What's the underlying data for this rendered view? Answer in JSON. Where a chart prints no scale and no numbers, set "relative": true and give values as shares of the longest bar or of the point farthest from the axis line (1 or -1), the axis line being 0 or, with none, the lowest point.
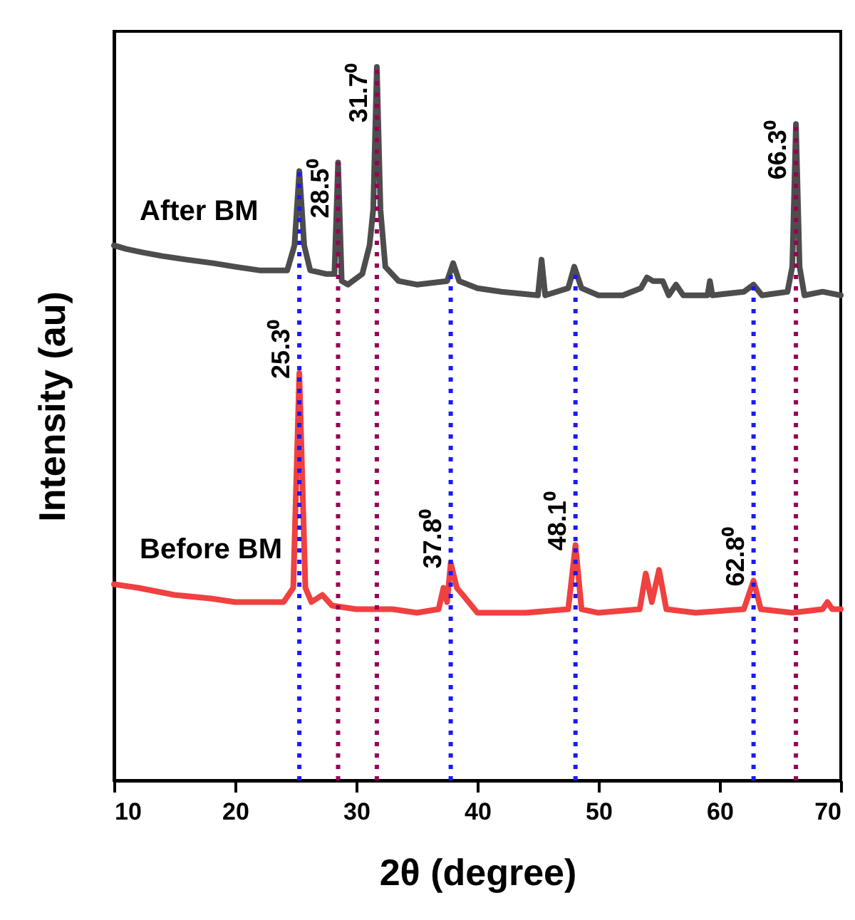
{
  "chart_data": {
    "type": "line",
    "relative": true,
    "xlabel": "2θ (degree)",
    "ylabel": "Intensity (au)",
    "xlim": [
      10,
      70
    ],
    "xticks": [
      10,
      20,
      30,
      40,
      50,
      60,
      70
    ],
    "tick_labels": "x",
    "grid": false,
    "legend": false,
    "line_style": "solid",
    "marker": "none",
    "series": [
      {
        "name": "After BM",
        "color": "#4d4d4d",
        "x": [
          10,
          11,
          12.4,
          14,
          16,
          18.2,
          20,
          22,
          24.3,
          24.9,
          25.3,
          25.7,
          26.2,
          27.5,
          28.2,
          28.5,
          28.8,
          29.3,
          30.5,
          31.1,
          31.4,
          31.7,
          32,
          32.4,
          33.5,
          35,
          37.5,
          38,
          38.5,
          40,
          42,
          45,
          45.3,
          45.6,
          47.5,
          48,
          48.6,
          50,
          52,
          53.5,
          54,
          54.5,
          55.3,
          55.8,
          56.4,
          57,
          59,
          59.2,
          59.4,
          62,
          62.8,
          63.5,
          65.6,
          66,
          66.3,
          66.6,
          67,
          68.5,
          70
        ],
        "values": [
          0.75,
          0.745,
          0.74,
          0.735,
          0.73,
          0.725,
          0.72,
          0.715,
          0.715,
          0.75,
          0.854,
          0.75,
          0.715,
          0.71,
          0.71,
          0.866,
          0.7,
          0.695,
          0.71,
          0.75,
          0.8,
          1,
          0.8,
          0.72,
          0.7,
          0.695,
          0.7,
          0.725,
          0.7,
          0.69,
          0.685,
          0.68,
          0.73,
          0.68,
          0.69,
          0.72,
          0.69,
          0.68,
          0.68,
          0.69,
          0.705,
          0.7,
          0.7,
          0.68,
          0.695,
          0.68,
          0.68,
          0.7,
          0.68,
          0.685,
          0.695,
          0.68,
          0.685,
          0.72,
          0.92,
          0.72,
          0.68,
          0.685,
          0.68
        ]
      },
      {
        "name": "Before BM",
        "color": "#f04040",
        "x": [
          10,
          12,
          15,
          18,
          20,
          22,
          24,
          24.8,
          25.3,
          25.8,
          26.3,
          27.2,
          28,
          30,
          33,
          35,
          36.8,
          37.2,
          37.5,
          37.8,
          38.3,
          38.8,
          40,
          44,
          47.5,
          48.1,
          48.6,
          50,
          53.4,
          53.9,
          54.4,
          55,
          55.6,
          58,
          62,
          62.8,
          63.4,
          66,
          68.5,
          68.9,
          69.3,
          70
        ],
        "values": [
          0.275,
          0.27,
          0.26,
          0.255,
          0.25,
          0.25,
          0.25,
          0.27,
          0.571,
          0.27,
          0.25,
          0.26,
          0.245,
          0.24,
          0.24,
          0.235,
          0.24,
          0.27,
          0.25,
          0.305,
          0.27,
          0.26,
          0.235,
          0.235,
          0.24,
          0.33,
          0.24,
          0.235,
          0.24,
          0.29,
          0.25,
          0.295,
          0.24,
          0.235,
          0.24,
          0.28,
          0.24,
          0.235,
          0.24,
          0.25,
          0.24,
          0.24
        ]
      }
    ],
    "ref_lines": [
      {
        "axis": "x",
        "value": 25.3,
        "color": "#1a1aff",
        "line_style": "dotted"
      },
      {
        "axis": "x",
        "value": 37.8,
        "color": "#1a1aff",
        "line_style": "dotted"
      },
      {
        "axis": "x",
        "value": 48.1,
        "color": "#1a1aff",
        "line_style": "dotted"
      },
      {
        "axis": "x",
        "value": 62.8,
        "color": "#1a1aff",
        "line_style": "dotted"
      },
      {
        "axis": "x",
        "value": 28.5,
        "color": "#990055",
        "line_style": "dotted"
      },
      {
        "axis": "x",
        "value": 31.7,
        "color": "#990055",
        "line_style": "dotted"
      },
      {
        "axis": "x",
        "value": 66.3,
        "color": "#990055",
        "line_style": "dotted"
      }
    ],
    "annotations": [
      {
        "text": "25.3⁰",
        "x": 25.3,
        "y": 0.571
      },
      {
        "text": "28.5⁰",
        "x": 28.5,
        "y": 0.866
      },
      {
        "text": "31.7⁰",
        "x": 31.7,
        "y": 1
      },
      {
        "text": "37.8⁰",
        "x": 37.8,
        "y": 0.305
      },
      {
        "text": "48.1⁰",
        "x": 48.1,
        "y": 0.33
      },
      {
        "text": "62.8⁰",
        "x": 62.8,
        "y": 0.28
      },
      {
        "text": "66.3⁰",
        "x": 66.3,
        "y": 0.92
      }
    ]
  }
}
